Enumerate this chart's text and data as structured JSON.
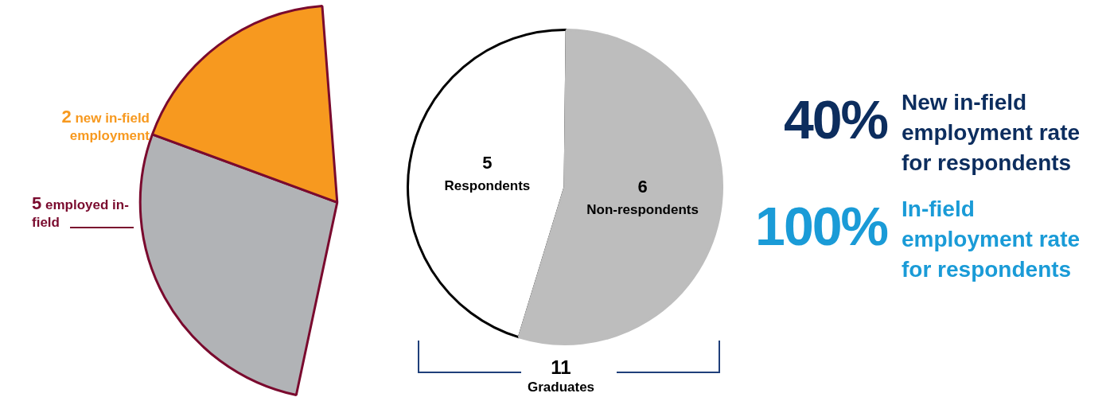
{
  "chart_data": [
    {
      "type": "pie",
      "categories": [
        null,
        "new in-field employment"
      ],
      "values": [
        3,
        2
      ],
      "colors": [
        "#b1b3b6",
        "#f7991f"
      ],
      "value_labels": [
        null,
        "2"
      ],
      "annotations": [
        "5 employed in-field"
      ],
      "legend": false
    },
    {
      "type": "pie",
      "categories": [
        "Respondents",
        "Non-respondents"
      ],
      "values": [
        5,
        6
      ],
      "colors": [
        "#ffffff",
        "#bdbdbd"
      ],
      "data_labels": true,
      "annotations": [
        "11",
        "Graduates"
      ],
      "legend": false
    },
    {
      "type": "other",
      "annotations": [
        "40%",
        "New in-field employment rate for respondents",
        "100%",
        "In-field employment rate for respondents"
      ],
      "colors": [
        "#0c2d5e",
        "#1a9bd7"
      ]
    }
  ]
}
